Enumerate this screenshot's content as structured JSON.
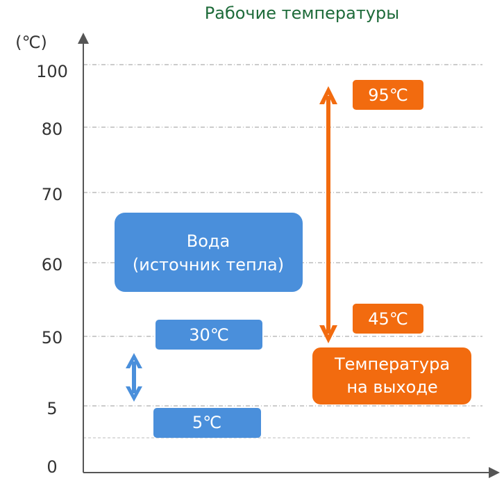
{
  "title": "Рабочие температуры",
  "axis_unit": "(℃)",
  "y_tick_labels": [
    "100",
    "80",
    "70",
    "60",
    "50",
    "5",
    "0"
  ],
  "source_box": {
    "line1": "Вода",
    "line2": "(источник тепла)",
    "high": "30℃",
    "low": "5℃"
  },
  "output_box": {
    "line1": "Температура",
    "line2": "на выходе",
    "high": "95℃",
    "low": "45℃"
  }
}
